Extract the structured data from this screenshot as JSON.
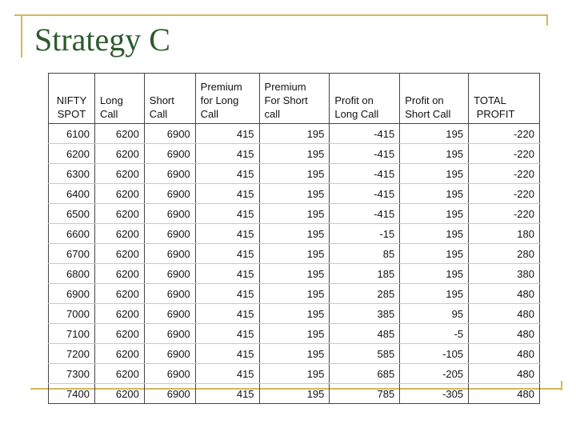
{
  "slide": {
    "title": "Strategy C"
  },
  "table": {
    "headers": [
      [
        "NIFTY",
        "SPOT"
      ],
      [
        "Long",
        "Call"
      ],
      [
        "Short",
        "Call"
      ],
      [
        "Premium",
        "for Long",
        "Call"
      ],
      [
        "Premium",
        "For Short",
        "call"
      ],
      [
        "Profit on",
        "Long Call"
      ],
      [
        "Profit on",
        "Short Call"
      ],
      [
        "TOTAL",
        " PROFIT"
      ]
    ],
    "rows": [
      [
        "6100",
        "6200",
        "6900",
        "415",
        "195",
        "-415",
        "195",
        "-220"
      ],
      [
        "6200",
        "6200",
        "6900",
        "415",
        "195",
        "-415",
        "195",
        "-220"
      ],
      [
        "6300",
        "6200",
        "6900",
        "415",
        "195",
        "-415",
        "195",
        "-220"
      ],
      [
        "6400",
        "6200",
        "6900",
        "415",
        "195",
        "-415",
        "195",
        "-220"
      ],
      [
        "6500",
        "6200",
        "6900",
        "415",
        "195",
        "-415",
        "195",
        "-220"
      ],
      [
        "6600",
        "6200",
        "6900",
        "415",
        "195",
        "-15",
        "195",
        "180"
      ],
      [
        "6700",
        "6200",
        "6900",
        "415",
        "195",
        "85",
        "195",
        "280"
      ],
      [
        "6800",
        "6200",
        "6900",
        "415",
        "195",
        "185",
        "195",
        "380"
      ],
      [
        "6900",
        "6200",
        "6900",
        "415",
        "195",
        "285",
        "195",
        "480"
      ],
      [
        "7000",
        "6200",
        "6900",
        "415",
        "195",
        "385",
        "95",
        "480"
      ],
      [
        "7100",
        "6200",
        "6900",
        "415",
        "195",
        "485",
        "-5",
        "480"
      ],
      [
        "7200",
        "6200",
        "6900",
        "415",
        "195",
        "585",
        "-105",
        "480"
      ],
      [
        "7300",
        "6200",
        "6900",
        "415",
        "195",
        "685",
        "-205",
        "480"
      ],
      [
        "7400",
        "6200",
        "6900",
        "415",
        "195",
        "785",
        "-305",
        "480"
      ]
    ]
  }
}
